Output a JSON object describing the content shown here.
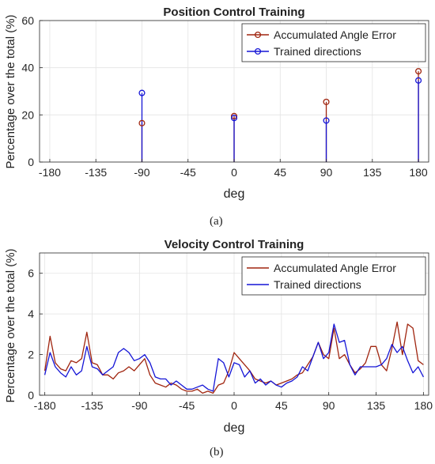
{
  "chart_data": [
    {
      "type": "stem",
      "title": "Position Control Training",
      "xlabel": "deg",
      "ylabel": "Percentage over the total (%)",
      "xlim": [
        -190,
        190
      ],
      "ylim": [
        0,
        60
      ],
      "xticks": [
        -180,
        -135,
        -90,
        -45,
        0,
        45,
        90,
        135,
        180
      ],
      "yticks": [
        0,
        20,
        40,
        60
      ],
      "grid": true,
      "legend_position": "top-right",
      "series": [
        {
          "name": "Accumulated Angle Error",
          "color": "#a0250f",
          "x": [
            -90,
            0,
            90,
            180
          ],
          "values": [
            16.5,
            19.5,
            25.5,
            38.5
          ]
        },
        {
          "name": "Trained directions",
          "color": "#1515d6",
          "x": [
            -90,
            0,
            90,
            180
          ],
          "values": [
            29.3,
            18.7,
            17.6,
            34.6
          ]
        }
      ]
    },
    {
      "type": "line",
      "title": "Velocity Control Training",
      "xlabel": "deg",
      "ylabel": "Percentage over the total (%)",
      "xlim": [
        -185,
        185
      ],
      "ylim": [
        0,
        7
      ],
      "xticks": [
        -180,
        -135,
        -90,
        -45,
        0,
        45,
        90,
        135,
        180
      ],
      "yticks": [
        0,
        2,
        4,
        6
      ],
      "grid": true,
      "legend_position": "top-right",
      "x": [
        -180,
        -175,
        -170,
        -165,
        -160,
        -155,
        -150,
        -145,
        -140,
        -135,
        -130,
        -125,
        -120,
        -115,
        -110,
        -105,
        -100,
        -95,
        -90,
        -85,
        -80,
        -75,
        -70,
        -65,
        -60,
        -55,
        -50,
        -45,
        -40,
        -35,
        -30,
        -25,
        -20,
        -15,
        -10,
        -5,
        0,
        5,
        10,
        15,
        20,
        25,
        30,
        35,
        40,
        45,
        50,
        55,
        60,
        65,
        70,
        75,
        80,
        85,
        90,
        95,
        100,
        105,
        110,
        115,
        120,
        125,
        130,
        135,
        140,
        145,
        150,
        155,
        160,
        165,
        170,
        175,
        180
      ],
      "series": [
        {
          "name": "Accumulated Angle Error",
          "color": "#a0250f",
          "values": [
            1.2,
            2.9,
            1.6,
            1.3,
            1.2,
            1.7,
            1.6,
            1.8,
            3.1,
            1.6,
            1.5,
            1.0,
            1.0,
            0.8,
            1.1,
            1.2,
            1.4,
            1.2,
            1.5,
            1.8,
            1.0,
            0.6,
            0.5,
            0.4,
            0.6,
            0.5,
            0.3,
            0.2,
            0.2,
            0.3,
            0.1,
            0.2,
            0.1,
            0.5,
            0.6,
            1.2,
            2.1,
            1.8,
            1.5,
            1.2,
            0.8,
            0.7,
            0.6,
            0.7,
            0.5,
            0.6,
            0.7,
            0.8,
            1.0,
            1.1,
            1.5,
            1.9,
            2.6,
            2.0,
            1.8,
            3.3,
            1.8,
            2.0,
            1.5,
            1.1,
            1.3,
            1.6,
            2.4,
            2.4,
            1.5,
            1.2,
            2.3,
            3.6,
            2.0,
            3.5,
            3.3,
            1.7,
            1.5
          ]
        },
        {
          "name": "Trained directions",
          "color": "#1515d6",
          "values": [
            1.0,
            2.1,
            1.4,
            1.1,
            0.9,
            1.4,
            1.0,
            1.2,
            2.4,
            1.4,
            1.3,
            1.0,
            1.2,
            1.4,
            2.1,
            2.3,
            2.1,
            1.7,
            1.8,
            2.0,
            1.6,
            0.9,
            0.8,
            0.8,
            0.5,
            0.7,
            0.5,
            0.3,
            0.3,
            0.4,
            0.5,
            0.3,
            0.2,
            1.8,
            1.6,
            0.9,
            1.6,
            1.5,
            0.9,
            1.2,
            0.6,
            0.8,
            0.5,
            0.7,
            0.5,
            0.4,
            0.6,
            0.7,
            0.9,
            1.4,
            1.2,
            1.9,
            2.6,
            1.8,
            2.1,
            3.5,
            2.6,
            2.7,
            1.5,
            1.0,
            1.4,
            1.4,
            1.4,
            1.4,
            1.5,
            1.8,
            2.5,
            2.1,
            2.4,
            1.7,
            1.1,
            1.4,
            0.9
          ]
        }
      ]
    }
  ],
  "captions": {
    "a": "(a)",
    "b": "(b)"
  }
}
